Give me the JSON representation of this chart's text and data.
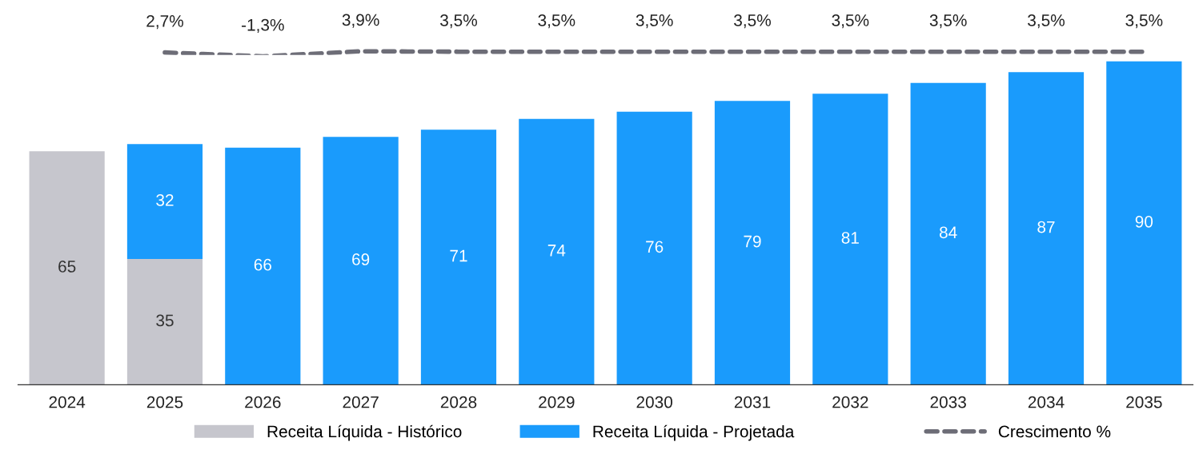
{
  "chart_data": [
    {
      "type": "line",
      "tick_labels": false,
      "legend": "bottom",
      "line_style": "dashed",
      "categories": [
        "2024",
        "2025",
        "2026",
        "2027",
        "2028",
        "2029",
        "2030",
        "2031",
        "2032",
        "2033",
        "2034",
        "2035"
      ],
      "series": [
        {
          "name": "Crescimento %",
          "color": "#6d6d77",
          "values": [
            null,
            2.7,
            -1.3,
            3.9,
            3.5,
            3.5,
            3.5,
            3.5,
            3.5,
            3.5,
            3.5,
            3.5
          ],
          "value_labels": [
            null,
            "2,7%",
            "-1,3%",
            "3,9%",
            "3,5%",
            "3,5%",
            "3,5%",
            "3,5%",
            "3,5%",
            "3,5%",
            "3,5%",
            "3,5%"
          ]
        }
      ]
    },
    {
      "type": "bar",
      "stacked": true,
      "data_labels": true,
      "legend": "bottom",
      "tick_labels": "x",
      "categories": [
        "2024",
        "2025",
        "2026",
        "2027",
        "2028",
        "2029",
        "2030",
        "2031",
        "2032",
        "2033",
        "2034",
        "2035"
      ],
      "series": [
        {
          "name": "Receita Líquida - Histórico",
          "color": "#c6c6cd",
          "values": [
            65,
            35,
            null,
            null,
            null,
            null,
            null,
            null,
            null,
            null,
            null,
            null
          ]
        },
        {
          "name": "Receita Líquida - Projetada",
          "color": "#1a9bfc",
          "values": [
            null,
            32,
            66,
            69,
            71,
            74,
            76,
            79,
            81,
            84,
            87,
            90
          ]
        }
      ]
    }
  ]
}
